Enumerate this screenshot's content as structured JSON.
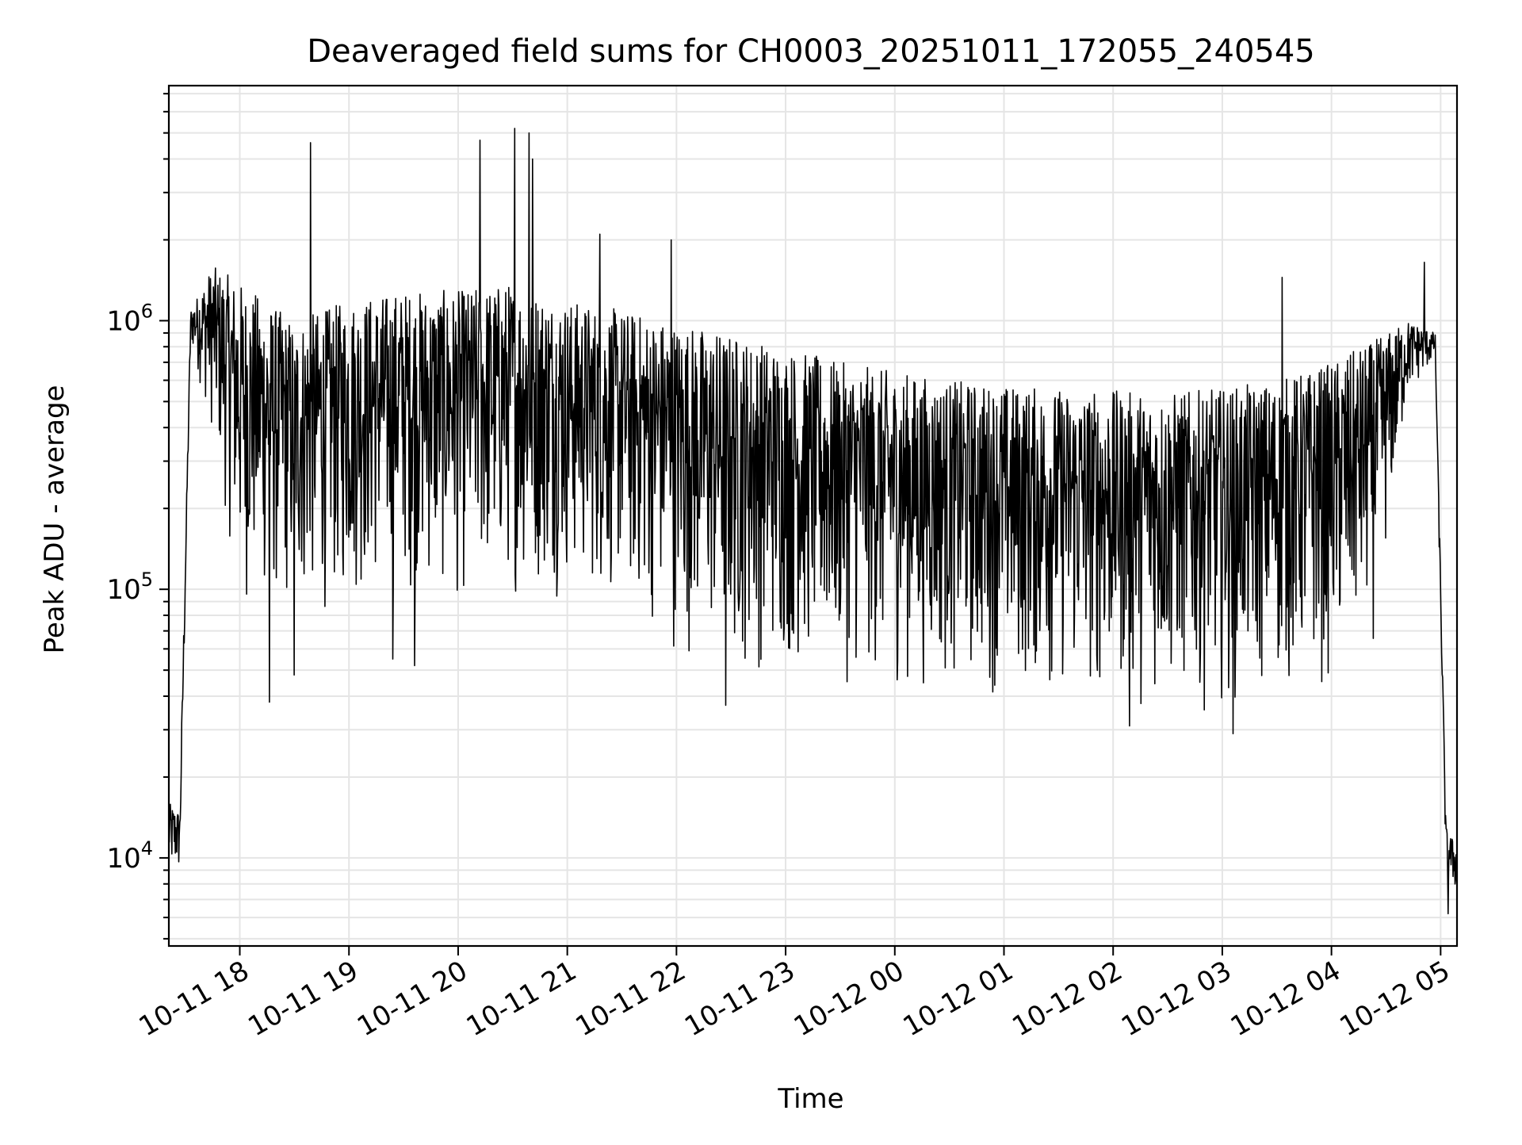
{
  "chart_data": {
    "type": "line",
    "title": "Deaveraged field sums for CH0003_20251011_172055_240545",
    "xlabel": "Time",
    "ylabel": "Peak ADU - average",
    "yscale": "log",
    "ylim": [
      4700,
      7500000
    ],
    "grid": true,
    "line_color": "#000000",
    "grid_color": "#e5e5e5",
    "x_unit": "hours since 2025-10-11 17:00",
    "xlim": [
      17.35,
      29.15
    ],
    "x_ticks": [
      {
        "value": 18,
        "label": "10-11 18"
      },
      {
        "value": 19,
        "label": "10-11 19"
      },
      {
        "value": 20,
        "label": "10-11 20"
      },
      {
        "value": 21,
        "label": "10-11 21"
      },
      {
        "value": 22,
        "label": "10-11 22"
      },
      {
        "value": 23,
        "label": "10-11 23"
      },
      {
        "value": 24,
        "label": "10-12 00"
      },
      {
        "value": 25,
        "label": "10-12 01"
      },
      {
        "value": 26,
        "label": "10-12 02"
      },
      {
        "value": 27,
        "label": "10-12 03"
      },
      {
        "value": 28,
        "label": "10-12 04"
      },
      {
        "value": 29,
        "label": "10-12 05"
      }
    ],
    "y_ticks": [
      {
        "value": 10000,
        "base": "10",
        "exp": "4"
      },
      {
        "value": 100000,
        "base": "10",
        "exp": "5"
      },
      {
        "value": 1000000,
        "base": "10",
        "exp": "6"
      }
    ],
    "envelope": {
      "description": "Dense noisy time series; upper and lower envelope of the trace (data units)",
      "x": [
        17.35,
        17.45,
        17.55,
        17.75,
        18.0,
        18.5,
        19.0,
        19.5,
        20.0,
        20.5,
        21.0,
        21.5,
        22.0,
        22.5,
        23.0,
        23.5,
        24.0,
        24.5,
        25.0,
        25.5,
        26.0,
        26.5,
        27.0,
        27.5,
        28.0,
        28.4,
        28.7,
        28.95,
        29.05,
        29.15
      ],
      "upper": [
        16000,
        15000,
        1100000,
        1600000,
        1400000,
        1000000,
        1200000,
        1300000,
        1300000,
        1400000,
        1200000,
        1100000,
        1000000,
        900000,
        800000,
        700000,
        650000,
        600000,
        580000,
        560000,
        550000,
        540000,
        560000,
        600000,
        700000,
        850000,
        1000000,
        900000,
        13000,
        11000
      ],
      "lower": [
        8000,
        8000,
        800000,
        350000,
        80000,
        70000,
        80000,
        90000,
        80000,
        90000,
        90000,
        80000,
        55000,
        45000,
        45000,
        42000,
        40000,
        40000,
        38000,
        36000,
        35000,
        34000,
        35000,
        37000,
        40000,
        60000,
        500000,
        700000,
        8000,
        7000
      ]
    },
    "spikes": [
      {
        "x": 18.65,
        "y": 4600000
      },
      {
        "x": 20.2,
        "y": 4700000
      },
      {
        "x": 20.52,
        "y": 5200000
      },
      {
        "x": 20.65,
        "y": 5000000
      },
      {
        "x": 20.68,
        "y": 4000000
      },
      {
        "x": 21.3,
        "y": 2100000
      },
      {
        "x": 21.95,
        "y": 2000000
      },
      {
        "x": 28.85,
        "y": 1650000
      },
      {
        "x": 27.55,
        "y": 1450000
      }
    ],
    "dips": [
      {
        "x": 18.27,
        "y": 38000
      },
      {
        "x": 18.5,
        "y": 48000
      },
      {
        "x": 19.4,
        "y": 55000
      },
      {
        "x": 19.6,
        "y": 52000
      },
      {
        "x": 22.45,
        "y": 37000
      },
      {
        "x": 26.15,
        "y": 31000
      },
      {
        "x": 27.1,
        "y": 29000
      },
      {
        "x": 29.07,
        "y": 6200
      }
    ]
  }
}
